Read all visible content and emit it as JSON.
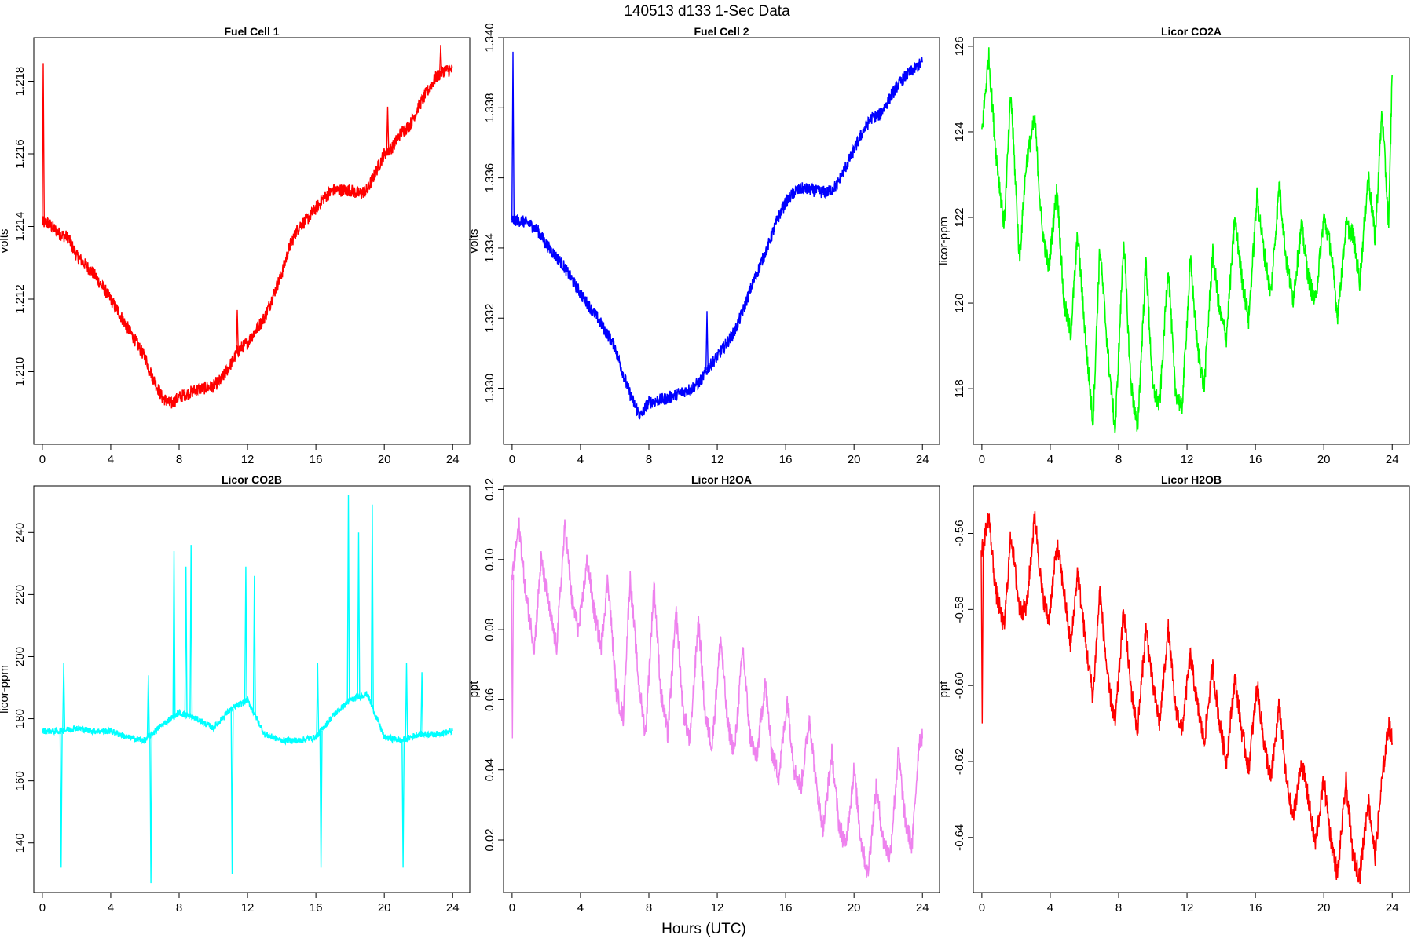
{
  "figure": {
    "title": "140513   d133   1-Sec Data",
    "xlabel": "Hours (UTC)"
  },
  "chart_data": [
    {
      "type": "line",
      "title": "Fuel Cell 1",
      "ylabel": "volts",
      "color": "#ff0000",
      "xlim": [
        -0.5,
        25
      ],
      "ylim": [
        1.208,
        1.2192
      ],
      "xticks": [
        0,
        4,
        8,
        12,
        16,
        20,
        24
      ],
      "yticks": [
        1.21,
        1.212,
        1.214,
        1.216,
        1.218
      ],
      "ytick_labels": [
        "1.210",
        "1.212",
        "1.214",
        "1.216",
        "1.218"
      ],
      "noise": 0.00018,
      "spikes": [
        {
          "x": 0.05,
          "y": 1.2185
        },
        {
          "x": 11.4,
          "y": 1.2117
        },
        {
          "x": 20.2,
          "y": 1.2173
        },
        {
          "x": 23.3,
          "y": 1.219
        }
      ],
      "series": [
        {
          "x": [
            0,
            0.3,
            1,
            1.5,
            2,
            3,
            4,
            5,
            6,
            6.5,
            7,
            7.5,
            8,
            9,
            10,
            10.5,
            11,
            11.5,
            12,
            13,
            13.5,
            14,
            14.5,
            15,
            15.5,
            16,
            16.5,
            17,
            18,
            18.5,
            19,
            19.5,
            20,
            20.5,
            21,
            21.5,
            22,
            22.5,
            23,
            23.5,
            24
          ],
          "y": [
            1.2141,
            1.2141,
            1.2138,
            1.2137,
            1.2132,
            1.2127,
            1.212,
            1.2112,
            1.2104,
            1.2098,
            1.2093,
            1.2091,
            1.2093,
            1.2095,
            1.2096,
            1.2098,
            1.2102,
            1.2106,
            1.2108,
            1.2115,
            1.2121,
            1.2127,
            1.2135,
            1.214,
            1.2142,
            1.2145,
            1.2148,
            1.215,
            1.215,
            1.2149,
            1.215,
            1.2155,
            1.216,
            1.2162,
            1.2166,
            1.2168,
            1.2173,
            1.2177,
            1.2181,
            1.2183,
            1.2183
          ]
        }
      ]
    },
    {
      "type": "line",
      "title": "Fuel Cell 2",
      "ylabel": "volts",
      "color": "#0000ff",
      "xlim": [
        -0.5,
        25
      ],
      "ylim": [
        1.3284,
        1.34
      ],
      "xticks": [
        0,
        4,
        8,
        12,
        16,
        20,
        24
      ],
      "yticks": [
        1.33,
        1.332,
        1.334,
        1.336,
        1.338,
        1.34
      ],
      "ytick_labels": [
        "1.330",
        "1.332",
        "1.334",
        "1.336",
        "1.338",
        "1.340"
      ],
      "noise": 0.00018,
      "spikes": [
        {
          "x": 0.05,
          "y": 1.3396
        },
        {
          "x": 11.4,
          "y": 1.3322
        }
      ],
      "series": [
        {
          "x": [
            0,
            0.3,
            1,
            1.5,
            2,
            3,
            4,
            5,
            6,
            6.5,
            7,
            7.5,
            8,
            9,
            10,
            10.5,
            11,
            11.5,
            12,
            13,
            13.5,
            14,
            14.5,
            15,
            15.5,
            16,
            16.5,
            17,
            18,
            18.5,
            19,
            19.5,
            20,
            20.5,
            21,
            21.5,
            22,
            22.5,
            23,
            23.5,
            24
          ],
          "y": [
            1.3348,
            1.3348,
            1.3347,
            1.3345,
            1.3341,
            1.3335,
            1.3327,
            1.332,
            1.3312,
            1.3304,
            1.3297,
            1.3292,
            1.3296,
            1.3297,
            1.3299,
            1.33,
            1.3302,
            1.3306,
            1.3309,
            1.3316,
            1.3322,
            1.3329,
            1.3335,
            1.3341,
            1.3348,
            1.3353,
            1.3356,
            1.3357,
            1.3356,
            1.3356,
            1.3358,
            1.3363,
            1.3368,
            1.3373,
            1.3377,
            1.3378,
            1.3382,
            1.3386,
            1.3389,
            1.3391,
            1.3393
          ]
        }
      ]
    },
    {
      "type": "line",
      "title": "Licor CO2A",
      "ylabel": "licor-ppm",
      "color": "#00ff00",
      "xlim": [
        -0.5,
        25
      ],
      "ylim": [
        116.7,
        126.2
      ],
      "xticks": [
        0,
        4,
        8,
        12,
        16,
        20,
        24
      ],
      "yticks": [
        118,
        120,
        122,
        124,
        126
      ],
      "ytick_labels": [
        "118",
        "120",
        "122",
        "124",
        "126"
      ],
      "noise": 0.25,
      "spikes": [],
      "series": [
        {
          "x": [
            0,
            0.4,
            0.8,
            1.3,
            1.7,
            2.2,
            2.6,
            3.1,
            3.5,
            3.9,
            4.4,
            4.8,
            5.2,
            5.6,
            6.1,
            6.5,
            6.9,
            7.4,
            7.8,
            8.3,
            8.7,
            9.1,
            9.6,
            10.0,
            10.4,
            10.9,
            11.3,
            11.7,
            12.2,
            12.6,
            13.0,
            13.5,
            13.9,
            14.3,
            14.8,
            15.2,
            15.6,
            16.1,
            16.5,
            16.9,
            17.4,
            17.8,
            18.2,
            18.7,
            19.1,
            19.5,
            20.0,
            20.4,
            20.8,
            21.3,
            21.7,
            22.1,
            22.6,
            23.0,
            23.4,
            23.8,
            24.0
          ],
          "y": [
            124.0,
            125.8,
            123.6,
            121.8,
            124.9,
            121.0,
            123.3,
            124.3,
            121.8,
            120.8,
            122.7,
            120.0,
            119.3,
            121.6,
            119.0,
            117.2,
            121.3,
            118.7,
            117.0,
            121.5,
            118.2,
            117.0,
            121.0,
            118.0,
            117.6,
            120.9,
            118.0,
            117.5,
            121.0,
            119.0,
            118.0,
            121.2,
            119.8,
            119.2,
            122.0,
            120.6,
            119.6,
            122.5,
            121.2,
            120.2,
            122.8,
            121.0,
            120.1,
            121.8,
            120.6,
            120.0,
            122.0,
            121.3,
            119.7,
            121.8,
            121.6,
            120.5,
            123.0,
            121.5,
            124.5,
            121.8,
            125.5
          ]
        }
      ]
    },
    {
      "type": "line",
      "title": "Licor CO2B",
      "ylabel": "licor-ppm",
      "color": "#00ffff",
      "xlim": [
        -0.5,
        25
      ],
      "ylim": [
        124,
        255
      ],
      "xticks": [
        0,
        4,
        8,
        12,
        16,
        20,
        24
      ],
      "yticks": [
        140,
        160,
        180,
        200,
        220,
        240
      ],
      "ytick_labels": [
        "140",
        "160",
        "180",
        "200",
        "220",
        "240"
      ],
      "noise": 1.0,
      "spikes": [
        {
          "x": 1.1,
          "y": 132
        },
        {
          "x": 1.25,
          "y": 198
        },
        {
          "x": 6.2,
          "y": 194
        },
        {
          "x": 6.35,
          "y": 127
        },
        {
          "x": 7.7,
          "y": 234
        },
        {
          "x": 8.4,
          "y": 229
        },
        {
          "x": 8.7,
          "y": 236
        },
        {
          "x": 11.1,
          "y": 130
        },
        {
          "x": 11.9,
          "y": 229
        },
        {
          "x": 12.4,
          "y": 226
        },
        {
          "x": 16.1,
          "y": 198
        },
        {
          "x": 16.3,
          "y": 132
        },
        {
          "x": 17.9,
          "y": 252
        },
        {
          "x": 18.5,
          "y": 240
        },
        {
          "x": 19.3,
          "y": 249
        },
        {
          "x": 21.1,
          "y": 132
        },
        {
          "x": 21.3,
          "y": 198
        },
        {
          "x": 22.2,
          "y": 195
        }
      ],
      "series": [
        {
          "x": [
            0,
            1,
            2,
            3,
            4,
            5,
            6,
            7,
            8,
            9,
            10,
            11,
            12,
            13,
            14,
            15,
            16,
            17,
            18,
            19,
            20,
            21,
            22,
            23,
            24
          ],
          "y": [
            176,
            176,
            177,
            176,
            176,
            174,
            173,
            178,
            182,
            180,
            177,
            183,
            186,
            175,
            173,
            173,
            174,
            181,
            186,
            188,
            174,
            173,
            175,
            175,
            176
          ]
        }
      ]
    },
    {
      "type": "line",
      "title": "Licor H2OA",
      "ylabel": "ppt",
      "color": "#ee82ee",
      "xlim": [
        -0.5,
        25
      ],
      "ylim": [
        0.005,
        0.121
      ],
      "xticks": [
        0,
        4,
        8,
        12,
        16,
        20,
        24
      ],
      "yticks": [
        0.02,
        0.04,
        0.06,
        0.08,
        0.1,
        0.12
      ],
      "ytick_labels": [
        "0.02",
        "0.04",
        "0.06",
        "0.08",
        "0.10",
        "0.12"
      ],
      "noise": 0.003,
      "spikes": [
        {
          "x": 0.02,
          "y": 0.049
        }
      ],
      "series": [
        {
          "x": [
            0,
            0.4,
            0.8,
            1.3,
            1.7,
            2.2,
            2.6,
            3.1,
            3.5,
            3.9,
            4.4,
            4.8,
            5.2,
            5.6,
            6.1,
            6.5,
            6.9,
            7.4,
            7.8,
            8.3,
            8.7,
            9.1,
            9.6,
            10.0,
            10.4,
            10.9,
            11.3,
            11.7,
            12.2,
            12.6,
            13.0,
            13.5,
            13.9,
            14.3,
            14.8,
            15.2,
            15.6,
            16.1,
            16.5,
            16.9,
            17.4,
            17.8,
            18.2,
            18.7,
            19.1,
            19.5,
            20.0,
            20.4,
            20.8,
            21.3,
            21.7,
            22.1,
            22.6,
            23.0,
            23.4,
            23.8,
            24.0
          ],
          "y": [
            0.095,
            0.11,
            0.09,
            0.075,
            0.1,
            0.085,
            0.075,
            0.11,
            0.088,
            0.08,
            0.1,
            0.085,
            0.075,
            0.095,
            0.062,
            0.055,
            0.095,
            0.065,
            0.05,
            0.093,
            0.062,
            0.05,
            0.085,
            0.057,
            0.048,
            0.083,
            0.055,
            0.047,
            0.078,
            0.053,
            0.045,
            0.075,
            0.05,
            0.043,
            0.065,
            0.045,
            0.038,
            0.06,
            0.04,
            0.035,
            0.055,
            0.035,
            0.023,
            0.045,
            0.025,
            0.018,
            0.04,
            0.02,
            0.01,
            0.035,
            0.02,
            0.015,
            0.045,
            0.025,
            0.018,
            0.048,
            0.05
          ]
        }
      ]
    },
    {
      "type": "line",
      "title": "Licor H2OB",
      "ylabel": "ppt",
      "color": "#ff0000",
      "xlim": [
        -0.5,
        25
      ],
      "ylim": [
        -0.6545,
        -0.5475
      ],
      "xticks": [
        0,
        4,
        8,
        12,
        16,
        20,
        24
      ],
      "yticks": [
        -0.56,
        -0.58,
        -0.6,
        -0.62,
        -0.64
      ],
      "ytick_labels": [
        "-0.56",
        "-0.58",
        "-0.60",
        "-0.62",
        "-0.64"
      ],
      "noise": 0.0028,
      "spikes": [
        {
          "x": 0.02,
          "y": -0.61
        }
      ],
      "series": [
        {
          "x": [
            0,
            0.4,
            0.8,
            1.3,
            1.7,
            2.2,
            2.6,
            3.1,
            3.5,
            3.9,
            4.4,
            4.8,
            5.2,
            5.6,
            6.1,
            6.5,
            6.9,
            7.4,
            7.8,
            8.3,
            8.7,
            9.1,
            9.6,
            10.0,
            10.4,
            10.9,
            11.3,
            11.7,
            12.2,
            12.6,
            13.0,
            13.5,
            13.9,
            14.3,
            14.8,
            15.2,
            15.6,
            16.1,
            16.5,
            16.9,
            17.4,
            17.8,
            18.2,
            18.7,
            19.1,
            19.5,
            20.0,
            20.4,
            20.8,
            21.3,
            21.7,
            22.1,
            22.6,
            23.0,
            23.4,
            23.8,
            24.0
          ],
          "y": [
            -0.565,
            -0.555,
            -0.575,
            -0.585,
            -0.56,
            -0.58,
            -0.58,
            -0.555,
            -0.575,
            -0.583,
            -0.563,
            -0.575,
            -0.59,
            -0.57,
            -0.59,
            -0.603,
            -0.575,
            -0.6,
            -0.61,
            -0.58,
            -0.6,
            -0.612,
            -0.585,
            -0.6,
            -0.61,
            -0.585,
            -0.605,
            -0.612,
            -0.592,
            -0.605,
            -0.615,
            -0.595,
            -0.61,
            -0.62,
            -0.598,
            -0.612,
            -0.622,
            -0.6,
            -0.615,
            -0.625,
            -0.605,
            -0.625,
            -0.635,
            -0.62,
            -0.63,
            -0.642,
            -0.625,
            -0.64,
            -0.65,
            -0.625,
            -0.645,
            -0.65,
            -0.63,
            -0.645,
            -0.625,
            -0.61,
            -0.615
          ]
        }
      ]
    }
  ]
}
